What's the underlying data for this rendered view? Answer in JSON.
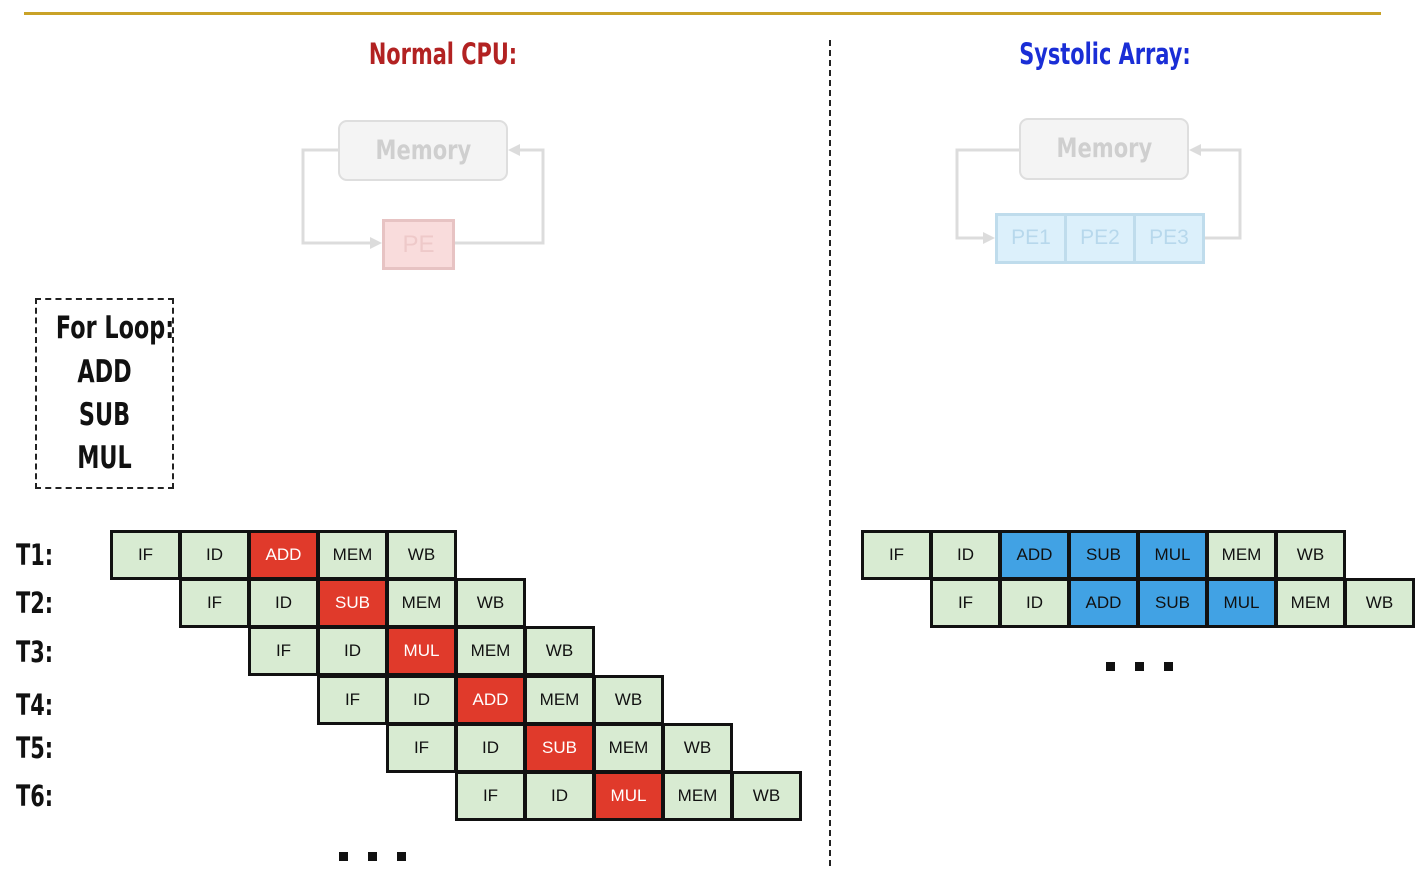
{
  "cpu": {
    "title": "Normal CPU:",
    "memory_label": "Memory",
    "pe_label": "PE",
    "accent_color": "#b22222",
    "op_color": "#e03a2b"
  },
  "systolic": {
    "title": "Systolic Array:",
    "memory_label": "Memory",
    "pe_labels": [
      "PE1",
      "PE2",
      "PE3"
    ],
    "accent_color": "#1a2ed6",
    "op_color": "#41a2e4"
  },
  "loop": {
    "title": "For Loop:",
    "ops": [
      "ADD",
      "SUB",
      "MUL"
    ]
  },
  "time_labels": [
    "T1:",
    "T2:",
    "T3:",
    "T4:",
    "T5:",
    "T6:"
  ],
  "cpu_pipeline": [
    {
      "stages": [
        "IF",
        "ID",
        "ADD",
        "MEM",
        "WB"
      ],
      "op_index": [
        2
      ]
    },
    {
      "stages": [
        "IF",
        "ID",
        "SUB",
        "MEM",
        "WB"
      ],
      "op_index": [
        2
      ]
    },
    {
      "stages": [
        "IF",
        "ID",
        "MUL",
        "MEM",
        "WB"
      ],
      "op_index": [
        2
      ]
    },
    {
      "stages": [
        "IF",
        "ID",
        "ADD",
        "MEM",
        "WB"
      ],
      "op_index": [
        2
      ]
    },
    {
      "stages": [
        "IF",
        "ID",
        "SUB",
        "MEM",
        "WB"
      ],
      "op_index": [
        2
      ]
    },
    {
      "stages": [
        "IF",
        "ID",
        "MUL",
        "MEM",
        "WB"
      ],
      "op_index": [
        2
      ]
    }
  ],
  "systolic_pipeline": [
    {
      "stages": [
        "IF",
        "ID",
        "ADD",
        "SUB",
        "MUL",
        "MEM",
        "WB"
      ],
      "op_index": [
        2,
        3,
        4
      ]
    },
    {
      "stages": [
        "IF",
        "ID",
        "ADD",
        "SUB",
        "MUL",
        "MEM",
        "WB"
      ],
      "op_index": [
        2,
        3,
        4
      ]
    }
  ],
  "stage_color": "#d8ebd2",
  "rule_color": "#c9a227"
}
